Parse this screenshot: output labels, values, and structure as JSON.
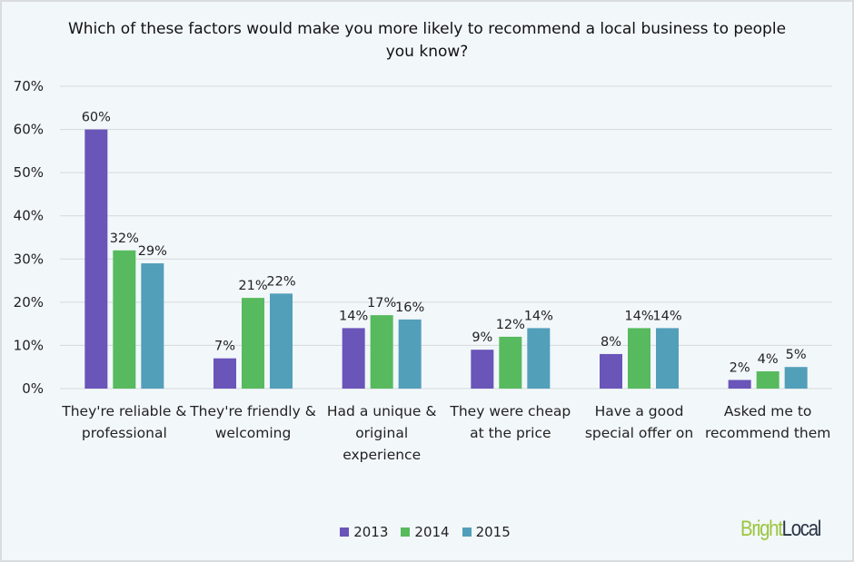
{
  "chart_data": {
    "type": "bar",
    "title": "Which of these factors would make you more likely to recommend a local business to people you know?",
    "categories": [
      [
        "They're reliable &",
        "professional"
      ],
      [
        "They're friendly &",
        "welcoming"
      ],
      [
        "Had a unique &",
        "original",
        "experience"
      ],
      [
        "They were cheap",
        "at the price"
      ],
      [
        "Have a good",
        "special offer on"
      ],
      [
        "Asked me to",
        "recommend them"
      ]
    ],
    "series": [
      {
        "name": "2013",
        "color": "#6a55b9",
        "values": [
          60,
          7,
          14,
          9,
          8,
          2
        ]
      },
      {
        "name": "2014",
        "color": "#57ba5e",
        "values": [
          32,
          21,
          17,
          12,
          14,
          4
        ]
      },
      {
        "name": "2015",
        "color": "#529fba",
        "values": [
          29,
          22,
          16,
          14,
          14,
          5
        ]
      }
    ],
    "yticks": [
      "0%",
      "10%",
      "20%",
      "30%",
      "40%",
      "50%",
      "60%",
      "70%"
    ],
    "ylim": [
      0,
      70
    ],
    "grid": true,
    "legend_position": "bottom"
  },
  "logo": {
    "part1": "Bright",
    "part2": "Local",
    "color1": "#9bc53d",
    "color2": "#2a3444"
  }
}
